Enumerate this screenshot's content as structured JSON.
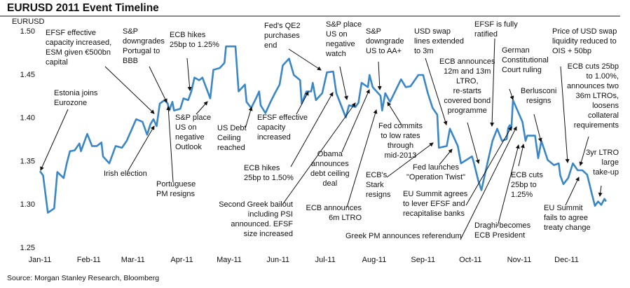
{
  "chart_data": {
    "type": "line",
    "title": "EURUSD 2011 Event Timeline",
    "ylabel": "EURUSD",
    "xlabel": "",
    "ylim": [
      1.25,
      1.5
    ],
    "yticks": [
      "1.50",
      "1.45",
      "1.40",
      "1.35",
      "1.30",
      "1.25"
    ],
    "xticks": [
      "Jan-11",
      "Feb-11",
      "Mar-11",
      "Apr-11",
      "May-11",
      "Jun-11",
      "Jul-11",
      "Aug-11",
      "Sep-11",
      "Oct-11",
      "Nov-11",
      "Dec-11"
    ],
    "grid": false,
    "line_color": "#3a87c8",
    "series": [
      {
        "x": [
          "2011-01-01",
          "2011-01-03",
          "2011-01-06",
          "2011-01-10",
          "2011-01-12",
          "2011-01-16",
          "2011-01-18",
          "2011-01-20",
          "2011-01-23",
          "2011-01-26",
          "2011-01-27",
          "2011-01-31",
          "2011-02-03",
          "2011-02-06",
          "2011-02-09",
          "2011-02-10",
          "2011-02-14",
          "2011-02-18",
          "2011-02-22",
          "2011-02-25",
          "2011-03-03",
          "2011-03-07",
          "2011-03-10",
          "2011-03-12",
          "2011-03-14",
          "2011-03-16",
          "2011-03-18",
          "2011-03-21",
          "2011-03-23",
          "2011-03-24",
          "2011-03-26",
          "2011-03-27",
          "2011-03-31",
          "2011-04-02",
          "2011-04-05",
          "2011-04-07",
          "2011-04-09",
          "2011-04-12",
          "2011-04-14",
          "2011-04-19",
          "2011-04-21",
          "2011-04-25",
          "2011-04-28",
          "2011-04-29",
          "2011-05-05",
          "2011-05-07",
          "2011-05-11",
          "2011-05-12",
          "2011-05-15",
          "2011-05-18",
          "2011-05-20",
          "2011-05-21",
          "2011-05-24",
          "2011-05-27",
          "2011-05-30",
          "2011-06-02",
          "2011-06-04",
          "2011-06-08",
          "2011-06-11",
          "2011-06-15",
          "2011-06-16",
          "2011-06-19",
          "2011-06-22",
          "2011-06-23",
          "2011-06-25",
          "2011-06-29",
          "2011-07-02",
          "2011-07-06",
          "2011-07-08",
          "2011-07-14",
          "2011-07-16",
          "2011-07-20",
          "2011-07-22",
          "2011-07-24",
          "2011-07-28",
          "2011-07-29",
          "2011-07-31",
          "2011-08-05",
          "2011-08-06",
          "2011-08-08",
          "2011-08-11",
          "2011-08-18",
          "2011-08-21",
          "2011-08-24",
          "2011-08-29",
          "2011-09-01",
          "2011-09-04",
          "2011-09-07",
          "2011-09-10",
          "2011-09-11",
          "2011-09-16",
          "2011-09-18",
          "2011-09-23",
          "2011-09-25",
          "2011-10-02",
          "2011-10-03",
          "2011-10-06",
          "2011-10-08",
          "2011-10-11",
          "2011-10-13",
          "2011-10-15",
          "2011-10-18",
          "2011-10-21",
          "2011-10-24",
          "2011-10-25",
          "2011-10-26",
          "2011-10-27",
          "2011-10-28",
          "2011-11-03",
          "2011-11-05",
          "2011-11-06",
          "2011-11-11",
          "2011-11-13",
          "2011-11-15",
          "2011-11-19",
          "2011-11-23",
          "2011-11-26",
          "2011-11-27",
          "2011-11-29",
          "2011-12-02",
          "2011-12-05",
          "2011-12-08",
          "2011-12-11",
          "2011-12-14",
          "2011-12-15",
          "2011-12-17",
          "2011-12-19",
          "2011-12-21",
          "2011-12-23",
          "2011-12-25",
          "2011-12-26"
        ],
        "y": [
          1.338,
          1.333,
          1.29,
          1.295,
          1.337,
          1.33,
          1.347,
          1.361,
          1.362,
          1.37,
          1.361,
          1.381,
          1.367,
          1.367,
          1.371,
          1.355,
          1.347,
          1.367,
          1.365,
          1.373,
          1.398,
          1.395,
          1.38,
          1.392,
          1.398,
          1.39,
          1.416,
          1.42,
          1.416,
          1.408,
          1.418,
          1.408,
          1.41,
          1.422,
          1.42,
          1.43,
          1.446,
          1.443,
          1.446,
          1.422,
          1.455,
          1.457,
          1.463,
          1.482,
          1.482,
          1.43,
          1.438,
          1.418,
          1.411,
          1.422,
          1.43,
          1.414,
          1.405,
          1.417,
          1.428,
          1.438,
          1.46,
          1.468,
          1.449,
          1.443,
          1.416,
          1.43,
          1.43,
          1.44,
          1.42,
          1.428,
          1.452,
          1.453,
          1.428,
          1.4,
          1.414,
          1.412,
          1.417,
          1.44,
          1.435,
          1.449,
          1.435,
          1.425,
          1.408,
          1.428,
          1.418,
          1.444,
          1.435,
          1.436,
          1.449,
          1.449,
          1.428,
          1.411,
          1.403,
          1.365,
          1.367,
          1.387,
          1.367,
          1.347,
          1.355,
          1.349,
          1.327,
          1.316,
          1.341,
          1.357,
          1.373,
          1.387,
          1.373,
          1.375,
          1.388,
          1.391,
          1.388,
          1.42,
          1.395,
          1.373,
          1.379,
          1.379,
          1.353,
          1.373,
          1.351,
          1.345,
          1.347,
          1.333,
          1.323,
          1.33,
          1.347,
          1.339,
          1.339,
          1.334,
          1.327,
          1.312,
          1.298,
          1.303,
          1.299,
          1.306,
          1.303
        ]
      }
    ],
    "annotations": [
      {
        "lines": [
          "Estonia joins",
          "Eurozone"
        ]
      },
      {
        "lines": [
          "EFSF effective",
          "capacity increased,",
          "ESM given €500bn",
          "capital"
        ]
      },
      {
        "lines": [
          "S&P",
          "downgrades",
          "Portugal to",
          "BBB"
        ]
      },
      {
        "lines": [
          "ECB hikes",
          "25bp to 1.25%"
        ]
      },
      {
        "lines": [
          "S&P place",
          "US on",
          "negative",
          "Outlook"
        ]
      },
      {
        "lines": [
          "US Debt",
          "Ceiling",
          "reached"
        ]
      },
      {
        "lines": [
          "Fed's QE2",
          "purchases",
          "end"
        ]
      },
      {
        "lines": [
          "EFSF effective",
          "capacity",
          "increased"
        ]
      },
      {
        "lines": [
          "ECB hikes",
          "25bp to 1.50%"
        ]
      },
      {
        "lines": [
          "Second Greek bailout",
          "including PSI",
          "announced. EFSF",
          "size increased"
        ]
      },
      {
        "lines": [
          "Obama",
          "announces",
          "debt ceiling",
          "deal"
        ]
      },
      {
        "lines": [
          "ECB announces",
          "6m LTRO"
        ]
      },
      {
        "lines": [
          "S&P place",
          "US on",
          "negative",
          "watch"
        ]
      },
      {
        "lines": [
          "S&P",
          "downgrade",
          "US to AA+"
        ]
      },
      {
        "lines": [
          "Fed commits",
          "to low rates",
          "through",
          "mid-2013"
        ]
      },
      {
        "lines": [
          "ECB's",
          "Stark",
          "resigns"
        ]
      },
      {
        "lines": [
          "USD swap",
          "lines extended",
          "to 3m"
        ]
      },
      {
        "lines": [
          "Fed launches",
          "\"Operation Twist\""
        ]
      },
      {
        "lines": [
          "EU Summit agrees",
          "to lever EFSF and",
          "recapitalise banks"
        ]
      },
      {
        "lines": [
          "Greek PM announces referendum"
        ]
      },
      {
        "lines": [
          "ECB announces",
          "12m and 13m",
          "LTRO,",
          "re-starts",
          "covered bond",
          "programme"
        ]
      },
      {
        "lines": [
          "EFSF is fully",
          "ratified"
        ]
      },
      {
        "lines": [
          "German",
          "Constitutional",
          "Court ruling"
        ]
      },
      {
        "lines": [
          "Draghi becomes",
          "ECB President"
        ]
      },
      {
        "lines": [
          "ECB cuts",
          "25bp to",
          "1.25%"
        ]
      },
      {
        "lines": [
          "Berlusconi",
          "resigns"
        ]
      },
      {
        "lines": [
          "Price of USD swap",
          "liquidity reduced to",
          "OIS + 50bp"
        ]
      },
      {
        "lines": [
          "ECB cuts 25bp",
          "to 1.00%,",
          "announces two",
          "36m LTROs,",
          "loosens",
          "collateral",
          "requirements"
        ]
      },
      {
        "lines": [
          "EU Summit",
          "fails to agree",
          "treaty change"
        ]
      },
      {
        "lines": [
          "3yr LTRO",
          "large",
          "take-up"
        ]
      },
      {
        "lines": [
          "Irish election"
        ]
      },
      {
        "lines": [
          "Portuguese",
          "PM resigns"
        ]
      }
    ]
  },
  "source": "Source: Morgan Stanley Research, Bloomberg"
}
